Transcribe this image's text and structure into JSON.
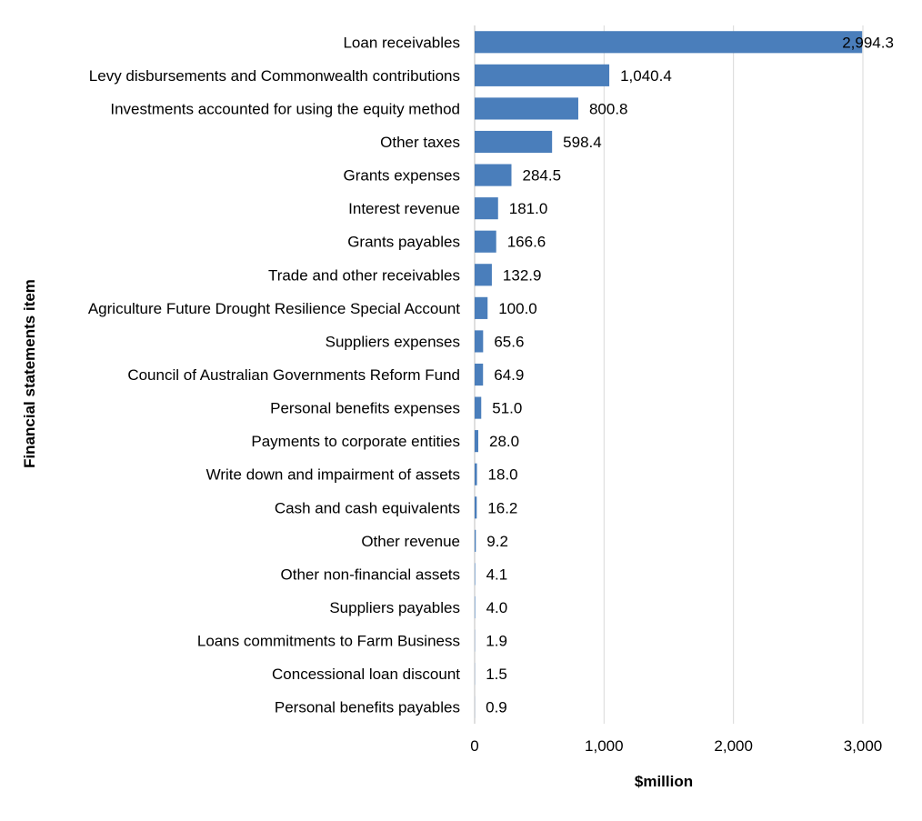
{
  "chart_data": {
    "type": "bar",
    "orientation": "horizontal",
    "categories": [
      "Loan receivables",
      "Levy disbursements and Commonwealth contributions",
      "Investments accounted for using the equity method",
      "Other taxes",
      "Grants expenses",
      "Interest revenue",
      "Grants payables",
      "Trade and other receivables",
      "Agriculture Future Drought Resilience Special Account",
      "Suppliers expenses",
      "Council of Australian Governments Reform Fund",
      "Personal benefits expenses",
      "Payments to corporate entities",
      "Write down and impairment of assets",
      "Cash and cash equivalents",
      "Other revenue",
      "Other non-financial assets",
      "Suppliers payables",
      "Loans commitments to Farm Business",
      "Concessional loan discount",
      "Personal benefits payables"
    ],
    "values": [
      2994.3,
      1040.4,
      800.8,
      598.4,
      284.5,
      181.0,
      166.6,
      132.9,
      100.0,
      65.6,
      64.9,
      51.0,
      28.0,
      18.0,
      16.2,
      9.2,
      4.1,
      4.0,
      1.9,
      1.5,
      0.9
    ],
    "value_labels": [
      "2,994.3",
      "1,040.4",
      "800.8",
      "598.4",
      "284.5",
      "181.0",
      "166.6",
      "132.9",
      "100.0",
      "65.6",
      "64.9",
      "51.0",
      "28.0",
      "18.0",
      "16.2",
      "9.2",
      "4.1",
      "4.0",
      "1.9",
      "1.5",
      "0.9"
    ],
    "xlabel": "$million",
    "ylabel": "Financial statements item",
    "xlim": [
      0,
      3000
    ],
    "xticks": [
      0,
      1000,
      2000,
      3000
    ],
    "xtick_labels": [
      "0",
      "1,000",
      "2,000",
      "3,000"
    ],
    "grid": "vertical",
    "bar_color": "#4A7EBB",
    "grid_color": "#D9D9D9"
  }
}
